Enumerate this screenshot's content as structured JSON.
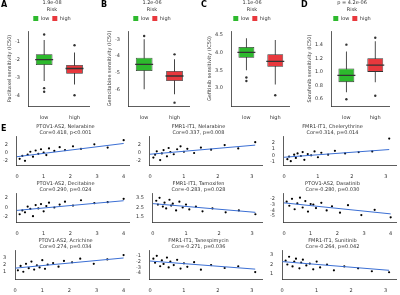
{
  "chart_data": [
    {
      "panel": "A",
      "type": "box",
      "annotation": "1.9e-08",
      "legend": "top",
      "legend_title": "Risk",
      "grid": false,
      "categories": [
        "low",
        "high"
      ],
      "colors": [
        "#2db92d",
        "#e8383d"
      ],
      "y_label": "Paclitaxel sensitivity (IC50)",
      "ylim": [
        -4.6,
        -0.4
      ],
      "yticks": [
        -4,
        -3,
        -2,
        -1
      ],
      "boxes": [
        {
          "min": -3.2,
          "q1": -2.3,
          "median": -2.0,
          "q3": -1.7,
          "max": -0.9,
          "outliers": [
            -3.6,
            -3.8,
            -0.6
          ]
        },
        {
          "min": -3.4,
          "q1": -2.8,
          "median": -2.5,
          "q3": -2.3,
          "max": -1.6,
          "outliers": [
            -4.0,
            -1.2
          ]
        }
      ]
    },
    {
      "panel": "B",
      "type": "box",
      "annotation": "1.2e-06",
      "legend": "top",
      "legend_title": "Risk",
      "grid": false,
      "categories": [
        "low",
        "high"
      ],
      "colors": [
        "#2db92d",
        "#e8383d"
      ],
      "y_label": "Gemcitabine sensitivity (IC50)",
      "ylim": [
        -7,
        -2.5
      ],
      "yticks": [
        -6,
        -5,
        -4,
        -3
      ],
      "boxes": [
        {
          "min": -6.0,
          "q1": -4.9,
          "median": -4.5,
          "q3": -4.1,
          "max": -3.0,
          "outliers": [
            -2.8
          ]
        },
        {
          "min": -6.3,
          "q1": -5.5,
          "median": -5.2,
          "q3": -4.9,
          "max": -4.2,
          "outliers": [
            -6.8,
            -3.9
          ]
        }
      ]
    },
    {
      "panel": "C",
      "type": "box",
      "annotation": "1.1e-06",
      "legend": "top",
      "legend_title": "Risk",
      "grid": false,
      "categories": [
        "low",
        "high"
      ],
      "colors": [
        "#2db92d",
        "#e8383d"
      ],
      "y_label": "Gefitinib sensitivity (IC50)",
      "ylim": [
        2.5,
        4.6
      ],
      "yticks": [
        {
          "value": 3,
          "label": "3.0"
        },
        3.5,
        {
          "value": 4,
          "label": "4.0"
        },
        4.5
      ],
      "boxes": [
        {
          "min": 3.5,
          "q1": 3.85,
          "median": 4.0,
          "q3": 4.15,
          "max": 4.4,
          "outliers": [
            3.2,
            3.3
          ]
        },
        {
          "min": 3.1,
          "q1": 3.6,
          "median": 3.75,
          "q3": 3.95,
          "max": 4.35,
          "outliers": [
            2.8
          ]
        }
      ]
    },
    {
      "panel": "D",
      "type": "box",
      "annotation": "p = 4.2e-06",
      "legend": "top",
      "legend_title": "Risk",
      "grid": false,
      "categories": [
        "low",
        "high"
      ],
      "colors": [
        "#2db92d",
        "#e8383d"
      ],
      "y_label": "Sorafenib sensitivity (IC50)",
      "ylim": [
        0.5,
        1.6
      ],
      "yticks": [
        0.6,
        0.8,
        {
          "value": 1,
          "label": "1.0"
        },
        1.2,
        1.4
      ],
      "boxes": [
        {
          "min": 0.7,
          "q1": 0.85,
          "median": 0.95,
          "q3": 1.05,
          "max": 1.3,
          "outliers": [
            0.6,
            1.4
          ]
        },
        {
          "min": 0.85,
          "q1": 1.0,
          "median": 1.1,
          "q3": 1.2,
          "max": 1.45,
          "outliers": [
            0.65,
            1.5
          ]
        }
      ]
    },
    {
      "panel": "E",
      "type": "scatter",
      "title": "PTOV1-AS2, Nelarabine",
      "annotation": "Cor=0.418, p<0.001",
      "grid": false,
      "color": "#000000",
      "xlim": [
        0,
        4.2
      ],
      "xticks": [
        0,
        1,
        2,
        3,
        4
      ],
      "ylim": [
        -3,
        4
      ],
      "yticks": [
        -2,
        0,
        2
      ],
      "x": [
        0.1,
        0.2,
        0.3,
        0.4,
        0.5,
        0.6,
        0.7,
        0.8,
        0.9,
        1.0,
        1.1,
        1.2,
        1.4,
        1.6,
        1.8,
        2.1,
        2.4,
        2.9,
        3.4,
        4.0
      ],
      "y": [
        -1.5,
        -0.8,
        -2.0,
        -0.5,
        0.2,
        -1.0,
        0.5,
        -0.3,
        0.8,
        0.0,
        -0.6,
        1.0,
        0.4,
        1.3,
        0.6,
        1.5,
        0.9,
        2.0,
        1.2,
        3.0
      ],
      "trend": {
        "x": [
          0,
          4
        ],
        "y": [
          -1.0,
          2.2
        ],
        "color": "#3b6fd4"
      }
    },
    {
      "type": "scatter",
      "title": "FMR1-IT1, Nelarabine",
      "annotation": "Cor=0.337, p=0.008",
      "grid": false,
      "color": "#000000",
      "xlim": [
        0,
        3.3
      ],
      "xticks": [
        0,
        1,
        2,
        3
      ],
      "ylim": [
        -3,
        4
      ],
      "yticks": [
        -2,
        0,
        2
      ],
      "x": [
        0.1,
        0.15,
        0.2,
        0.3,
        0.35,
        0.4,
        0.5,
        0.55,
        0.6,
        0.7,
        0.8,
        0.9,
        1.0,
        1.1,
        1.3,
        1.5,
        1.8,
        2.2,
        2.6,
        3.1
      ],
      "y": [
        -1.2,
        -0.5,
        0.3,
        -1.8,
        -0.2,
        0.6,
        -0.9,
        1.1,
        0.1,
        -0.4,
        0.8,
        1.5,
        0.2,
        0.9,
        -0.1,
        1.2,
        0.7,
        1.8,
        1.0,
        2.5
      ],
      "trend": {
        "x": [
          0,
          3.1
        ],
        "y": [
          -0.4,
          1.8
        ],
        "color": "#3b6fd4"
      }
    },
    {
      "type": "scatter",
      "title": "FMR1-IT1, Chelerythrine",
      "annotation": "Cor=0.314, p=0.014",
      "grid": false,
      "color": "#000000",
      "xlim": [
        0,
        3.3
      ],
      "xticks": [
        0,
        1,
        2,
        3
      ],
      "ylim": [
        -1.5,
        3
      ],
      "yticks": [
        -1,
        0,
        1,
        2
      ],
      "x": [
        0.1,
        0.15,
        0.2,
        0.3,
        0.35,
        0.4,
        0.5,
        0.55,
        0.6,
        0.7,
        0.8,
        0.9,
        1.0,
        1.1,
        1.3,
        1.5,
        1.8,
        2.2,
        2.6,
        3.1
      ],
      "y": [
        -0.6,
        -0.2,
        -0.9,
        0.1,
        -0.4,
        0.3,
        -0.1,
        0.5,
        -0.7,
        0.2,
        0.0,
        0.6,
        -0.3,
        0.4,
        0.1,
        0.7,
        0.3,
        0.5,
        0.6,
        2.6
      ],
      "trend": {
        "x": [
          0,
          3.1
        ],
        "y": [
          -0.3,
          0.9
        ],
        "color": "#3b6fd4"
      }
    },
    {
      "type": "scatter",
      "title": "PTOV1-AS2, Decitabine",
      "annotation": "Cor=0.290, p=0.024",
      "grid": false,
      "color": "#000000",
      "xlim": [
        0,
        4.2
      ],
      "xticks": [
        0,
        1,
        2,
        3,
        4
      ],
      "ylim": [
        -3,
        3
      ],
      "yticks": [
        -2,
        0,
        2
      ],
      "x": [
        0.1,
        0.2,
        0.3,
        0.4,
        0.5,
        0.6,
        0.7,
        0.8,
        0.9,
        1.0,
        1.1,
        1.2,
        1.4,
        1.6,
        1.8,
        2.1,
        2.4,
        2.9,
        3.4,
        4.0
      ],
      "y": [
        -1.4,
        -0.6,
        -1.0,
        0.2,
        -0.3,
        -1.8,
        0.5,
        -0.2,
        0.7,
        -0.8,
        0.3,
        1.0,
        0.0,
        0.6,
        1.2,
        0.4,
        1.5,
        0.9,
        1.1,
        1.8
      ],
      "trend": {
        "x": [
          0,
          4
        ],
        "y": [
          -0.6,
          1.4
        ],
        "color": "#3b6fd4"
      }
    },
    {
      "type": "scatter",
      "title": "FMR1-IT1, Tamoxifen",
      "annotation": "Cor=-0.283, p=0.028",
      "grid": false,
      "color": "#000000",
      "xlim": [
        0,
        3.3
      ],
      "xticks": [
        0,
        1,
        2,
        3
      ],
      "ylim": [
        1,
        4
      ],
      "yticks": [
        1.5,
        2.5,
        3.5
      ],
      "x": [
        0.1,
        0.15,
        0.2,
        0.3,
        0.35,
        0.4,
        0.5,
        0.55,
        0.6,
        0.7,
        0.8,
        0.9,
        1.0,
        1.1,
        1.3,
        1.5,
        1.8,
        2.2,
        2.6,
        3.1
      ],
      "y": [
        3.2,
        2.8,
        3.5,
        2.6,
        3.0,
        2.4,
        3.3,
        2.7,
        2.9,
        2.2,
        3.1,
        2.5,
        2.8,
        2.3,
        2.6,
        2.1,
        2.4,
        2.0,
        2.2,
        1.8
      ],
      "trend": {
        "x": [
          0,
          3.1
        ],
        "y": [
          2.9,
          2.0
        ],
        "color": "#3b6fd4"
      }
    },
    {
      "type": "scatter",
      "title": "PTOV1-AS2, Dasatinib",
      "annotation": "Cor=-0.280, p=0.030",
      "grid": false,
      "color": "#000000",
      "xlim": [
        0,
        4.2
      ],
      "xticks": [
        0,
        1,
        2,
        3,
        4
      ],
      "ylim": [
        -6,
        -1
      ],
      "yticks": [
        -5,
        -4,
        -3,
        -2
      ],
      "x": [
        0.1,
        0.2,
        0.3,
        0.4,
        0.5,
        0.6,
        0.7,
        0.8,
        0.9,
        1.0,
        1.1,
        1.2,
        1.4,
        1.6,
        1.8,
        2.1,
        2.4,
        2.9,
        3.4,
        4.0
      ],
      "y": [
        -2.5,
        -3.2,
        -2.0,
        -3.8,
        -2.8,
        -1.8,
        -3.5,
        -2.4,
        -4.2,
        -2.9,
        -3.0,
        -3.6,
        -2.7,
        -4.0,
        -3.3,
        -4.4,
        -3.1,
        -4.8,
        -3.9,
        -5.2
      ],
      "trend": {
        "x": [
          0,
          4
        ],
        "y": [
          -2.7,
          -4.6
        ],
        "color": "#3b6fd4"
      }
    },
    {
      "type": "scatter",
      "title": "PTOV1-AS2, Acrichine",
      "annotation": "Cor=0.274, p=0.034",
      "grid": false,
      "color": "#000000",
      "xlim": [
        0,
        4.2
      ],
      "xticks": [
        0,
        1,
        2,
        3,
        4
      ],
      "ylim": [
        0,
        4
      ],
      "yticks": [
        1,
        2,
        3
      ],
      "x": [
        0.1,
        0.2,
        0.3,
        0.4,
        0.5,
        0.6,
        0.7,
        0.8,
        0.9,
        1.0,
        1.1,
        1.2,
        1.4,
        1.6,
        1.8,
        2.1,
        2.4,
        2.9,
        3.4,
        4.0
      ],
      "y": [
        1.2,
        1.8,
        1.0,
        2.1,
        1.5,
        2.4,
        1.3,
        1.9,
        1.6,
        2.6,
        1.4,
        2.0,
        2.2,
        1.7,
        2.5,
        2.3,
        2.8,
        2.1,
        2.7,
        3.3
      ],
      "trend": {
        "x": [
          0,
          4
        ],
        "y": [
          1.5,
          2.9
        ],
        "color": "#3b6fd4"
      }
    },
    {
      "type": "scatter",
      "title": "FMR1-IT1, Tanespimycin",
      "annotation": "Cor=-0.271, p=0.036",
      "grid": false,
      "color": "#000000",
      "xlim": [
        0,
        3.3
      ],
      "xticks": [
        0,
        1,
        2,
        3
      ],
      "ylim": [
        -5,
        0
      ],
      "yticks": [
        -4,
        -3,
        -2,
        -1
      ],
      "x": [
        0.1,
        0.15,
        0.2,
        0.3,
        0.35,
        0.4,
        0.5,
        0.55,
        0.6,
        0.7,
        0.8,
        0.9,
        1.0,
        1.1,
        1.3,
        1.5,
        1.8,
        2.2,
        2.6,
        3.1
      ],
      "y": [
        -1.5,
        -2.2,
        -1.0,
        -2.8,
        -1.8,
        -2.4,
        -1.3,
        -3.0,
        -2.0,
        -2.6,
        -1.7,
        -3.2,
        -2.3,
        -2.9,
        -2.1,
        -3.4,
        -2.6,
        -3.1,
        -2.8,
        -3.8
      ],
      "trend": {
        "x": [
          0,
          3.1
        ],
        "y": [
          -1.9,
          -3.3
        ],
        "color": "#3b6fd4"
      }
    },
    {
      "type": "scatter",
      "title": "FMR1-IT1, Sunitinib",
      "annotation": "Cor=-0.264, p=0.042",
      "grid": false,
      "color": "#000000",
      "xlim": [
        0,
        3.3
      ],
      "xticks": [
        0,
        1,
        2,
        3
      ],
      "ylim": [
        0.5,
        3.5
      ],
      "yticks": [
        1,
        2,
        3
      ],
      "x": [
        0.1,
        0.15,
        0.2,
        0.3,
        0.35,
        0.4,
        0.5,
        0.55,
        0.6,
        0.7,
        0.8,
        0.9,
        1.0,
        1.1,
        1.3,
        1.5,
        1.8,
        2.2,
        2.6,
        3.1
      ],
      "y": [
        2.4,
        2.0,
        2.8,
        1.8,
        2.3,
        2.6,
        1.6,
        2.2,
        2.5,
        1.9,
        2.1,
        1.5,
        2.3,
        1.7,
        2.0,
        1.4,
        1.8,
        1.6,
        1.3,
        1.2
      ],
      "trend": {
        "x": [
          0,
          3.1
        ],
        "y": [
          2.3,
          1.4
        ],
        "color": "#3b6fd4"
      }
    }
  ]
}
